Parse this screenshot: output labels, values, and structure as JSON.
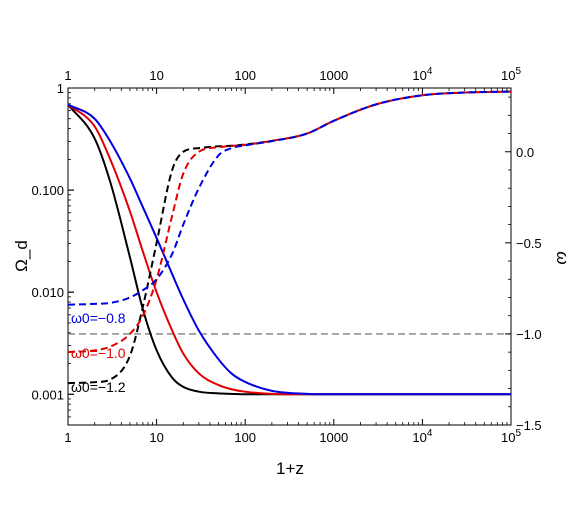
{
  "chart_data": {
    "type": "line",
    "title": "",
    "xlabel": "1+z",
    "ylabel_left": "Ω_d",
    "ylabel_right": "ω",
    "x_scale": "log",
    "x_range": [
      1,
      100000
    ],
    "x_ticks": [
      "1",
      "10",
      "100",
      "1000",
      "10^4",
      "10^5"
    ],
    "y_left_scale": "log",
    "y_left_range": [
      0.0005,
      1
    ],
    "y_left_ticks": [
      "0.001",
      "0.010",
      "0.100",
      "1"
    ],
    "y_right_range": [
      -1.5,
      0.35
    ],
    "y_right_ticks": [
      "-1.5",
      "-1.0",
      "-0.5",
      "0.0"
    ],
    "grid": false,
    "reference_line": {
      "axis": "right",
      "value": -1.0,
      "color": "#808080",
      "style": "dashed"
    },
    "x": [
      1,
      2,
      3,
      5,
      7,
      10,
      15,
      20,
      30,
      50,
      70,
      100,
      200,
      500,
      1000,
      3000,
      10000,
      30000,
      100000
    ],
    "series": [
      {
        "label": "ω0=−1.2",
        "color": "#000000",
        "style": "solid",
        "axis": "left",
        "values": [
          0.69,
          0.32,
          0.12,
          0.022,
          0.0068,
          0.0027,
          0.00145,
          0.00118,
          0.00106,
          0.00102,
          0.00101,
          0.001,
          0.001,
          0.001,
          0.001,
          0.001,
          0.001,
          0.001,
          0.001
        ]
      },
      {
        "label": "ω0=−1.0",
        "color": "#e00000",
        "style": "solid",
        "axis": "left",
        "values": [
          0.69,
          0.42,
          0.2,
          0.062,
          0.025,
          0.01,
          0.0042,
          0.0025,
          0.0016,
          0.00123,
          0.00112,
          0.00106,
          0.00101,
          0.001,
          0.001,
          0.001,
          0.001,
          0.001,
          0.001
        ]
      },
      {
        "label": "ω0=−0.8",
        "color": "#0000e0",
        "style": "solid",
        "axis": "left",
        "values": [
          0.69,
          0.5,
          0.3,
          0.13,
          0.068,
          0.034,
          0.015,
          0.0085,
          0.0042,
          0.0022,
          0.0016,
          0.00132,
          0.00108,
          0.00101,
          0.001,
          0.001,
          0.001,
          0.001,
          0.001
        ]
      },
      {
        "label": "",
        "color": "#000000",
        "style": "dashed",
        "axis": "right",
        "values": [
          -1.27,
          -1.265,
          -1.25,
          -1.12,
          -0.85,
          -0.5,
          -0.1,
          0.0,
          0.02,
          0.03,
          0.033,
          0.04,
          0.06,
          0.1,
          0.17,
          0.26,
          0.31,
          0.325,
          0.33
        ]
      },
      {
        "label": "",
        "color": "#e00000",
        "style": "dashed",
        "axis": "right",
        "values": [
          -1.1,
          -1.09,
          -1.07,
          -1.0,
          -0.9,
          -0.7,
          -0.35,
          -0.12,
          0.0,
          0.025,
          0.032,
          0.038,
          0.06,
          0.1,
          0.17,
          0.26,
          0.31,
          0.325,
          0.33
        ]
      },
      {
        "label": "",
        "color": "#0000e0",
        "style": "dashed",
        "axis": "right",
        "values": [
          -0.84,
          -0.835,
          -0.83,
          -0.8,
          -0.76,
          -0.7,
          -0.56,
          -0.4,
          -0.2,
          -0.02,
          0.02,
          0.035,
          0.058,
          0.1,
          0.17,
          0.26,
          0.31,
          0.325,
          0.33
        ]
      }
    ]
  }
}
